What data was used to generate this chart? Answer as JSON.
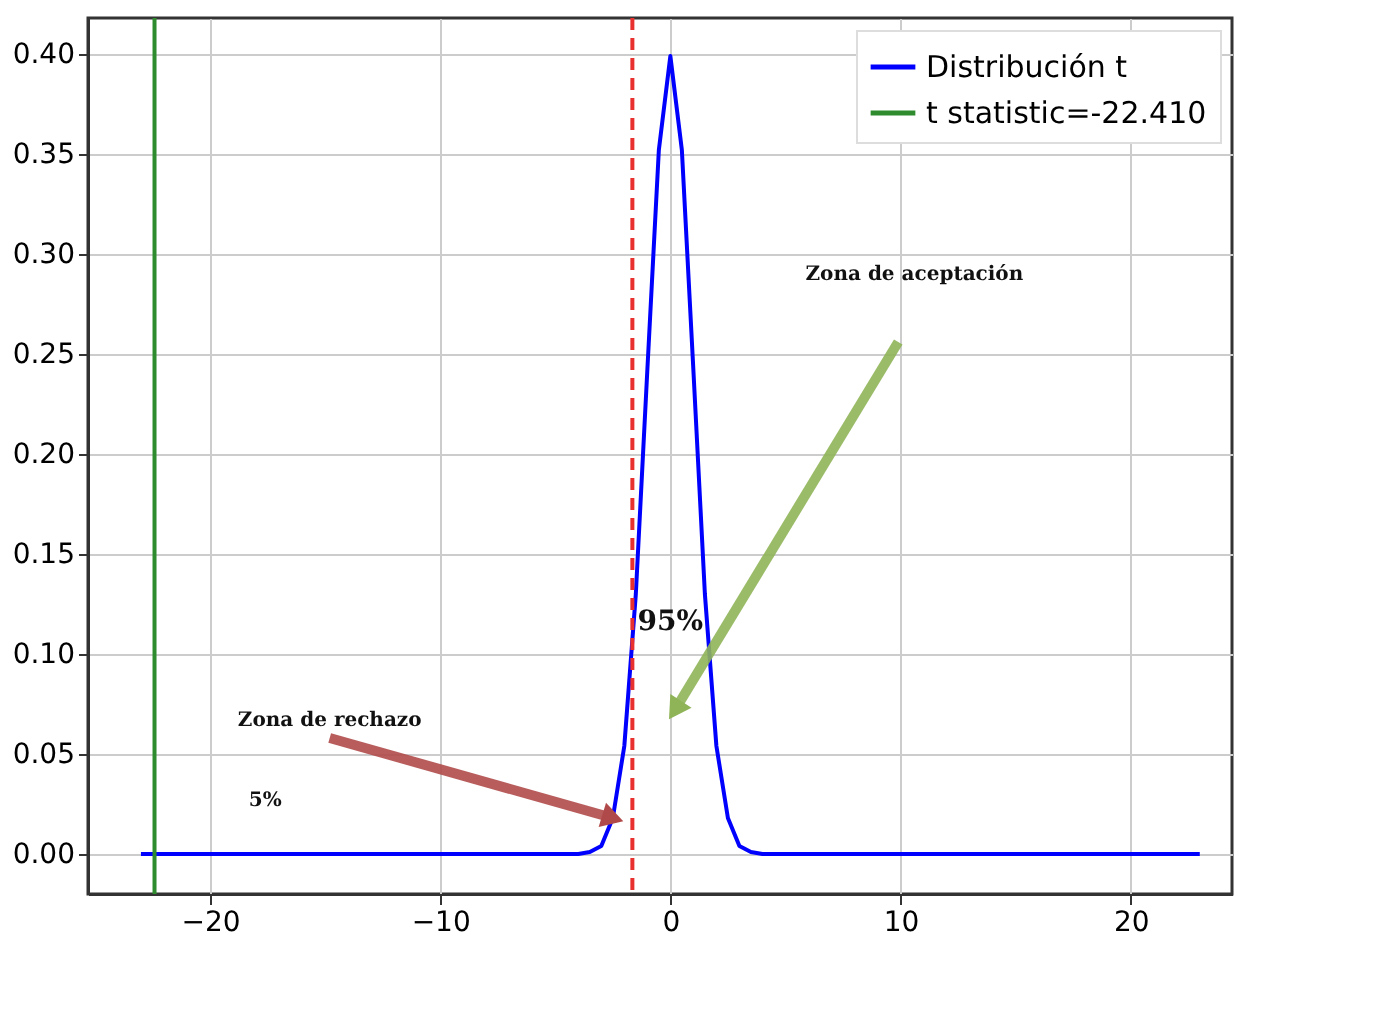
{
  "chart_data": {
    "type": "line",
    "xlim": [
      -25.3,
      24.4
    ],
    "ylim": [
      -0.02,
      0.418
    ],
    "xticks": [
      -20,
      -10,
      0,
      10,
      20
    ],
    "yticks": [
      {
        "value": 0,
        "label": "0.00"
      },
      {
        "value": 0.05,
        "label": "0.05"
      },
      {
        "value": 0.1,
        "label": "0.10"
      },
      {
        "value": 0.15,
        "label": "0.15"
      },
      {
        "value": 0.2,
        "label": "0.20"
      },
      {
        "value": 0.25,
        "label": "0.25"
      },
      {
        "value": 0.3,
        "label": "0.30"
      },
      {
        "value": 0.35,
        "label": "0.35"
      },
      {
        "value": 0.4,
        "label": "0.40"
      }
    ],
    "grid": true,
    "legend": "top right",
    "series": [
      {
        "name": "Distribución t",
        "color": "#0000ff",
        "x": [
          -23,
          -6,
          -4,
          -3.5,
          -3,
          -2.5,
          -2,
          -1.5,
          -1,
          -0.5,
          0,
          0.5,
          1,
          1.5,
          2,
          2.5,
          3,
          3.5,
          4,
          6,
          23
        ],
        "values": [
          0,
          0,
          0,
          0.001,
          0.004,
          0.018,
          0.054,
          0.13,
          0.242,
          0.352,
          0.399,
          0.352,
          0.242,
          0.13,
          0.054,
          0.018,
          0.004,
          0.001,
          0,
          0,
          0
        ]
      },
      {
        "name": "t statistic=-22.410",
        "color": "#2e8b2e",
        "x": [
          -22.41,
          -22.41
        ],
        "values": [
          -0.02,
          0.418
        ]
      }
    ],
    "ref_lines": [
      {
        "axis": "x",
        "value": -1.65,
        "color": "#e8312f",
        "line_style": "dashed"
      }
    ],
    "annotations": [
      "Zona de aceptación",
      "95%",
      {
        "text": "Zona de rechazo",
        "x": -2.5,
        "y": 0.018
      },
      "5%"
    ]
  }
}
